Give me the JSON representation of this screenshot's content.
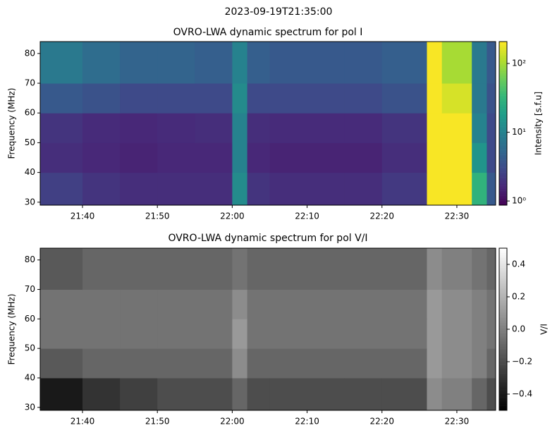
{
  "title": "2023-09-19T21:35:00",
  "chart_data": [
    {
      "type": "heatmap",
      "title": "OVRO-LWA dynamic spectrum for pol I",
      "ylabel": "Frequency (MHz)",
      "x": [
        "21:34:21",
        "21:40",
        "21:45",
        "21:50",
        "21:55",
        "22:00",
        "22:02",
        "22:05",
        "22:10",
        "22:15",
        "22:20",
        "22:26",
        "22:28",
        "22:32",
        "22:34",
        "22:35:11"
      ],
      "y": [
        29,
        40,
        50,
        60,
        70,
        84
      ],
      "values": [
        [
          2.5,
          2.0,
          1.8,
          1.8,
          1.8,
          12,
          2,
          1.8,
          1.8,
          1.8,
          2.2,
          200,
          200,
          30,
          4
        ],
        [
          1.8,
          1.6,
          1.5,
          1.6,
          1.6,
          10,
          1.6,
          1.5,
          1.5,
          1.5,
          1.8,
          200,
          200,
          15,
          3
        ],
        [
          2,
          1.7,
          1.6,
          1.7,
          1.8,
          10,
          1.8,
          1.7,
          1.7,
          1.7,
          2,
          200,
          200,
          10,
          3
        ],
        [
          4,
          3.5,
          3,
          3,
          3,
          12,
          3,
          3,
          3,
          3,
          3.5,
          200,
          150,
          8,
          3.5
        ],
        [
          8,
          6,
          5,
          5,
          4.5,
          10,
          4.5,
          4,
          4,
          4,
          4.5,
          200,
          100,
          8,
          4
        ]
      ],
      "xlim": [
        "21:34:21",
        "22:35:11"
      ],
      "xticks": [
        "21:40",
        "21:50",
        "22:00",
        "22:10",
        "22:20",
        "22:30"
      ],
      "ylim": [
        29,
        84
      ],
      "yticks": [
        30,
        40,
        50,
        60,
        70,
        80
      ],
      "colorbar": {
        "label": "Intensity [s.f.u]",
        "lim": [
          0.87,
          208
        ],
        "scale": "log",
        "colormap": "viridis",
        "ticks": [
          {
            "value": 1,
            "label": "10⁰"
          },
          {
            "value": 10,
            "label": "10¹"
          },
          {
            "value": 100,
            "label": "10²"
          }
        ]
      }
    },
    {
      "type": "heatmap",
      "title": "OVRO-LWA dynamic spectrum for pol V/I",
      "ylabel": "Frequency (MHz)",
      "x": [
        "21:34:21",
        "21:40",
        "21:45",
        "21:50",
        "21:55",
        "22:00",
        "22:02",
        "22:05",
        "22:10",
        "22:15",
        "22:20",
        "22:26",
        "22:28",
        "22:32",
        "22:34",
        "22:35:11"
      ],
      "y": [
        29,
        40,
        50,
        60,
        70,
        84
      ],
      "values": [
        [
          -0.4,
          -0.3,
          -0.25,
          -0.2,
          -0.2,
          -0.1,
          -0.2,
          -0.2,
          -0.2,
          -0.2,
          -0.2,
          0.05,
          0,
          -0.1,
          -0.2
        ],
        [
          -0.15,
          -0.1,
          -0.1,
          -0.1,
          -0.1,
          0.05,
          -0.1,
          -0.1,
          -0.1,
          -0.1,
          -0.1,
          0.1,
          0.05,
          0,
          -0.1
        ],
        [
          -0.05,
          -0.05,
          -0.05,
          -0.05,
          -0.05,
          0.1,
          -0.05,
          -0.05,
          -0.05,
          -0.05,
          -0.05,
          0.1,
          0.05,
          0,
          -0.05
        ],
        [
          -0.05,
          -0.05,
          -0.05,
          -0.05,
          -0.05,
          0.05,
          -0.05,
          -0.05,
          -0.05,
          -0.05,
          -0.05,
          0.1,
          0.05,
          0,
          -0.05
        ],
        [
          -0.15,
          -0.1,
          -0.1,
          -0.1,
          -0.1,
          -0.05,
          -0.1,
          -0.1,
          -0.1,
          -0.1,
          -0.1,
          0.05,
          0,
          -0.05,
          -0.1
        ]
      ],
      "xlim": [
        "21:34:21",
        "22:35:11"
      ],
      "xticks": [
        "21:40",
        "21:50",
        "22:00",
        "22:10",
        "22:20",
        "22:30"
      ],
      "ylim": [
        29,
        84
      ],
      "yticks": [
        30,
        40,
        50,
        60,
        70,
        80
      ],
      "colorbar": {
        "label": "V/I",
        "lim": [
          -0.5,
          0.5
        ],
        "scale": "linear",
        "colormap": "gray",
        "ticks": [
          {
            "value": -0.4,
            "label": "−0.4"
          },
          {
            "value": -0.2,
            "label": "−0.2"
          },
          {
            "value": 0,
            "label": "0.0"
          },
          0.2,
          0.4
        ]
      }
    }
  ]
}
